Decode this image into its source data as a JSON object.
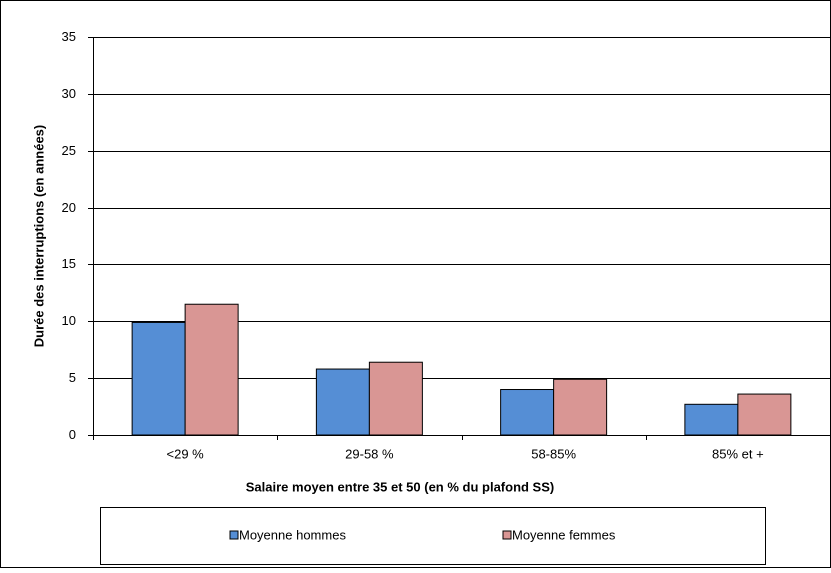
{
  "chart_data": {
    "type": "bar",
    "x_label": "Salaire moyen entre 35 et 50 (en % du plafond SS)",
    "y_label": "Durée des interruptions (en années)",
    "categories": [
      "<29 %",
      "29-58 %",
      "58-85%",
      "85% et +"
    ],
    "series": [
      {
        "name": "Moyenne hommes",
        "color": "#558ed5",
        "values": [
          9.9,
          5.8,
          4.0,
          2.7
        ]
      },
      {
        "name": "Moyenne femmes",
        "color": "#d99694",
        "values": [
          11.5,
          6.4,
          4.9,
          3.6
        ]
      }
    ],
    "ylim": [
      0,
      35
    ],
    "yticks": [
      0,
      5,
      10,
      15,
      20,
      25,
      30,
      35
    ],
    "grid": true
  }
}
